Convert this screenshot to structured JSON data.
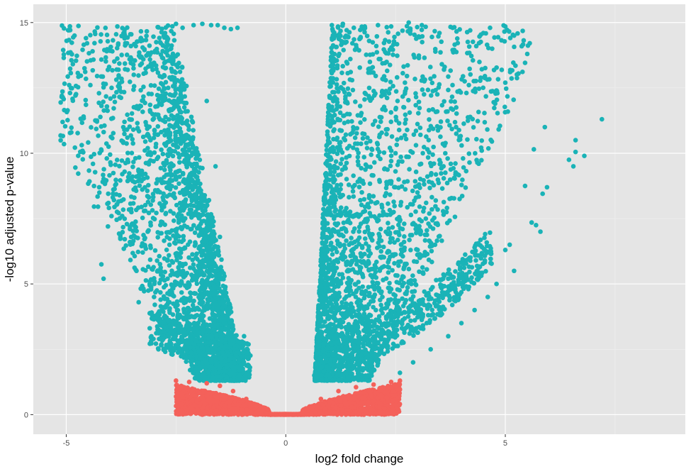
{
  "chart_data": {
    "type": "scatter",
    "title": "",
    "xlabel": "log2 fold change",
    "ylabel": "-log10 adjusted p-value",
    "xlim": [
      -5.75,
      9.1
    ],
    "ylim": [
      -0.75,
      15.7
    ],
    "x_ticks": [
      -5,
      0,
      5
    ],
    "x_tick_labels": [
      "-5",
      "0",
      "5"
    ],
    "y_ticks": [
      0,
      5,
      10,
      15
    ],
    "y_tick_labels": [
      "0",
      "5",
      "10",
      "15"
    ],
    "grid": true,
    "legend": "none",
    "colors": {
      "significant": "#1ab3b7",
      "not_significant": "#f4615a",
      "panel_background": "#e5e5e5",
      "grid_major": "#ffffff",
      "grid_minor": "#f0f0f0"
    },
    "series": [
      {
        "group": "significant",
        "color": "#1ab3b7",
        "points": [
          [
            -5.1,
            12.2
          ],
          [
            -5.05,
            10.35
          ],
          [
            -4.6,
            14.15
          ],
          [
            -4.4,
            13.9
          ],
          [
            -4.3,
            11.25
          ],
          [
            -4.25,
            8.7
          ],
          [
            -4.2,
            5.75
          ],
          [
            -4.15,
            5.2
          ],
          [
            -4.05,
            7.2
          ],
          [
            -3.95,
            13.9
          ],
          [
            -3.85,
            13.2
          ],
          [
            -3.75,
            12.35
          ],
          [
            -3.7,
            11.0
          ],
          [
            -3.6,
            9.75
          ],
          [
            -3.55,
            6.6
          ],
          [
            -3.45,
            8.3
          ],
          [
            -3.4,
            5.5
          ],
          [
            -3.35,
            4.3
          ],
          [
            -3.3,
            11.8
          ],
          [
            -3.2,
            7.8
          ],
          [
            -3.1,
            5.0
          ],
          [
            -3.0,
            4.5
          ],
          [
            -2.95,
            14.25
          ],
          [
            -2.9,
            2.5
          ],
          [
            -2.75,
            14.6
          ],
          [
            -2.6,
            13.5
          ],
          [
            -2.5,
            14.95
          ],
          [
            -2.35,
            14.8
          ],
          [
            -2.1,
            14.9
          ],
          [
            -2.05,
            2.7
          ],
          [
            -1.9,
            14.95
          ],
          [
            -1.7,
            14.9
          ],
          [
            -1.55,
            14.9
          ],
          [
            -1.4,
            14.8
          ],
          [
            -1.25,
            14.75
          ],
          [
            -1.1,
            14.8
          ],
          [
            -2.4,
            10.4
          ],
          [
            -2.3,
            7.5
          ],
          [
            -2.2,
            5.0
          ],
          [
            -2.0,
            3.5
          ],
          [
            -1.8,
            12.0
          ],
          [
            -1.6,
            9.5
          ],
          [
            -1.5,
            6.8
          ],
          [
            -1.35,
            4.5
          ],
          [
            -1.2,
            2.3
          ],
          [
            -1.05,
            1.6
          ],
          [
            -0.95,
            3.0
          ],
          [
            -0.9,
            1.4
          ],
          [
            -0.85,
            2.2
          ],
          [
            1.05,
            14.9
          ],
          [
            1.3,
            14.95
          ],
          [
            1.55,
            14.8
          ],
          [
            1.8,
            14.85
          ],
          [
            2.1,
            14.9
          ],
          [
            2.4,
            14.85
          ],
          [
            2.8,
            15.0
          ],
          [
            3.1,
            14.9
          ],
          [
            3.5,
            14.6
          ],
          [
            3.8,
            14.8
          ],
          [
            4.2,
            14.7
          ],
          [
            4.5,
            14.6
          ],
          [
            4.7,
            14.0
          ],
          [
            5.0,
            14.85
          ],
          [
            5.2,
            14.5
          ],
          [
            5.5,
            13.8
          ],
          [
            5.3,
            13.05
          ],
          [
            5.0,
            12.7
          ],
          [
            4.8,
            12.4
          ],
          [
            5.9,
            11.0
          ],
          [
            7.2,
            11.3
          ],
          [
            6.6,
            10.5
          ],
          [
            6.6,
            10.05
          ],
          [
            6.8,
            9.9
          ],
          [
            6.45,
            9.75
          ],
          [
            6.55,
            9.5
          ],
          [
            5.65,
            10.15
          ],
          [
            5.45,
            8.75
          ],
          [
            5.95,
            8.7
          ],
          [
            5.85,
            8.45
          ],
          [
            5.6,
            7.35
          ],
          [
            5.7,
            7.25
          ],
          [
            5.8,
            7.0
          ],
          [
            5.1,
            6.5
          ],
          [
            5.0,
            6.3
          ],
          [
            5.2,
            5.5
          ],
          [
            4.8,
            5.0
          ],
          [
            4.6,
            4.5
          ],
          [
            4.3,
            4.0
          ],
          [
            4.0,
            3.5
          ],
          [
            3.7,
            3.0
          ],
          [
            3.3,
            2.5
          ],
          [
            2.9,
            2.0
          ],
          [
            2.6,
            1.6
          ],
          [
            0.65,
            1.5
          ],
          [
            0.8,
            3.0
          ],
          [
            0.9,
            6.0
          ],
          [
            1.1,
            9.0
          ],
          [
            1.4,
            11.5
          ],
          [
            1.9,
            12.5
          ],
          [
            2.5,
            10.0
          ],
          [
            3.0,
            8.5
          ],
          [
            3.4,
            6.5
          ],
          [
            2.2,
            4.5
          ],
          [
            1.6,
            2.5
          ]
        ]
      },
      {
        "group": "not_significant",
        "color": "#f4615a",
        "points": [
          [
            -2.5,
            1.3
          ],
          [
            -2.2,
            1.25
          ],
          [
            -1.8,
            1.2
          ],
          [
            -1.5,
            1.1
          ],
          [
            -1.2,
            0.9
          ],
          [
            -0.9,
            0.6
          ],
          [
            -0.6,
            0.3
          ],
          [
            -0.4,
            0.05
          ],
          [
            0.0,
            0.0
          ],
          [
            0.35,
            0.05
          ],
          [
            0.55,
            0.3
          ],
          [
            0.8,
            0.6
          ],
          [
            1.2,
            0.9
          ],
          [
            1.6,
            1.05
          ],
          [
            2.0,
            1.15
          ],
          [
            2.4,
            1.25
          ],
          [
            2.6,
            1.3
          ]
        ]
      }
    ]
  }
}
